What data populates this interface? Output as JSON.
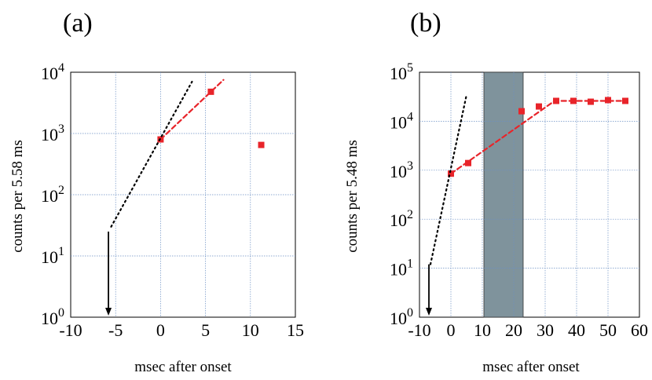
{
  "chart_data": [
    {
      "panel": "(a)",
      "type": "scatter",
      "xlabel": "msec after onset",
      "ylabel": "counts per 5.58 ms",
      "xlim": [
        -10,
        15
      ],
      "ylim_log10": [
        0,
        4
      ],
      "xticks": [
        -10,
        -5,
        0,
        5,
        10,
        15
      ],
      "xtick_labels": [
        "-10",
        "-5",
        "0",
        "5",
        "10",
        "15"
      ],
      "yticks": [
        0,
        1,
        2,
        3,
        4
      ],
      "grid": true,
      "series": [
        {
          "name": "counts",
          "style": "red squares",
          "x": [
            0,
            5.6,
            11.2
          ],
          "y": [
            800,
            4800,
            650
          ]
        },
        {
          "name": "red dashed fit",
          "style": "red dashed",
          "x": [
            0,
            7
          ],
          "y": [
            800,
            7500
          ]
        },
        {
          "name": "black dotted extrapolation",
          "style": "black dotted",
          "x": [
            -5.5,
            3.5
          ],
          "y": [
            30,
            7000
          ]
        }
      ],
      "upper_limit_arrow": {
        "x": -5.8,
        "from": 25,
        "to": 1
      }
    },
    {
      "panel": "(b)",
      "type": "scatter",
      "xlabel": "msec after onset",
      "ylabel": "counts per 5.48 ms",
      "xlim": [
        -10,
        60
      ],
      "ylim_log10": [
        0,
        5
      ],
      "xticks": [
        -10,
        0,
        10,
        20,
        30,
        40,
        50,
        60
      ],
      "xtick_labels": [
        "-10",
        "0",
        "10",
        "20",
        "30",
        "40",
        "50",
        "60"
      ],
      "yticks": [
        0,
        1,
        2,
        3,
        4,
        5
      ],
      "grid": true,
      "shaded_region": [
        10.5,
        23
      ],
      "series": [
        {
          "name": "counts",
          "style": "red squares",
          "x": [
            0,
            5.5,
            22.5,
            28,
            33.5,
            39,
            44.5,
            50,
            55.5
          ],
          "y": [
            850,
            1400,
            16000,
            20000,
            26000,
            26000,
            25000,
            27000,
            26000
          ]
        },
        {
          "name": "red dashed fit",
          "style": "red dashed",
          "x": [
            0,
            33,
            56
          ],
          "y": [
            850,
            26000,
            26000
          ]
        },
        {
          "name": "black dotted extrapolation",
          "style": "black dotted",
          "x": [
            -6.5,
            5
          ],
          "y": [
            12,
            35000
          ]
        }
      ],
      "upper_limit_arrow": {
        "x": -7,
        "from": 12,
        "to": 1
      }
    }
  ]
}
